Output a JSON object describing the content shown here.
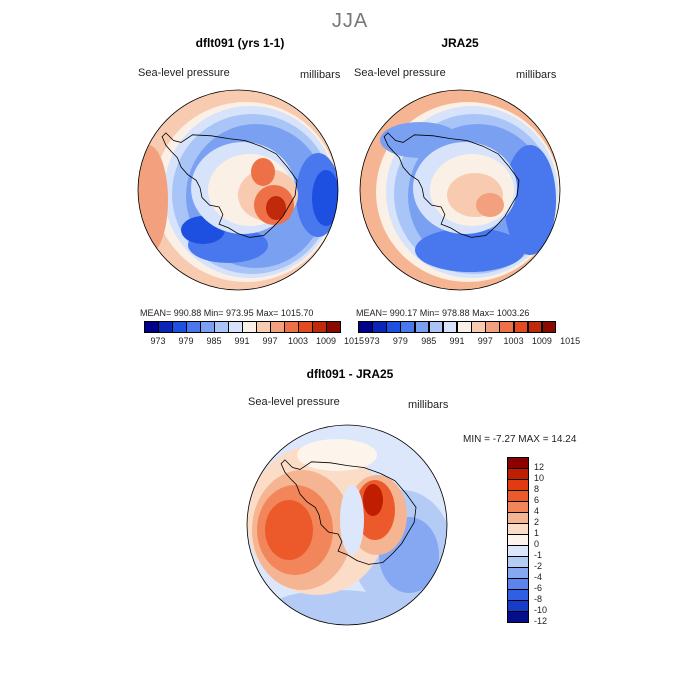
{
  "figure": {
    "title": "JJA",
    "field_label": "Sea-level pressure",
    "units_label": "millibars"
  },
  "chart_data": [
    {
      "type": "heatmap",
      "title": "dflt091 (yrs 1-1)",
      "projection": "south polar stereographic",
      "variable": "Sea-level pressure",
      "units": "millibars",
      "stats_text": "MEAN= 990.88   Min= 973.95   Max= 1015.70",
      "mean": 990.88,
      "min": 973.95,
      "max": 1015.7,
      "colorbar_ticks": [
        "973",
        "979",
        "985",
        "991",
        "997",
        "1003",
        "1009",
        "1015"
      ]
    },
    {
      "type": "heatmap",
      "title": "JRA25",
      "projection": "south polar stereographic",
      "variable": "Sea-level pressure",
      "units": "millibars",
      "stats_text": "MEAN= 990.17   Min= 978.88   Max= 1003.26",
      "mean": 990.17,
      "min": 978.88,
      "max": 1003.26,
      "colorbar_ticks": [
        "973",
        "979",
        "985",
        "991",
        "997",
        "1003",
        "1009",
        "1015"
      ]
    },
    {
      "type": "heatmap",
      "title": "dflt091 - JRA25",
      "projection": "south polar stereographic",
      "variable": "Sea-level pressure",
      "units": "millibars",
      "stats_text": "MIN =   -7.27 MAX =   14.24",
      "min": -7.27,
      "max": 14.24,
      "colorbar_ticks": [
        "12",
        "10",
        "8",
        "6",
        "4",
        "2",
        "1",
        "0",
        "-1",
        "-2",
        "-4",
        "-6",
        "-8",
        "-10",
        "-12"
      ]
    }
  ],
  "colors": {
    "seq_palette": [
      "#00008b",
      "#0a25b8",
      "#1d4fe0",
      "#4877ee",
      "#7aa0f2",
      "#a9c4f6",
      "#d6e3fa",
      "#fbf0e6",
      "#f8cbb0",
      "#f3a07e",
      "#ee7047",
      "#e34a1d",
      "#c02a0a",
      "#8b0a00"
    ],
    "diff_palette": [
      "#8b0000",
      "#bf1e00",
      "#e03b11",
      "#ec5a2c",
      "#f2865a",
      "#f6b592",
      "#fbdcc6",
      "#fdf4ec",
      "#dce7fb",
      "#b4cbf6",
      "#86a7f1",
      "#5b85ec",
      "#305fe4",
      "#173cc9",
      "#040d8a"
    ],
    "coast": "#000000"
  }
}
